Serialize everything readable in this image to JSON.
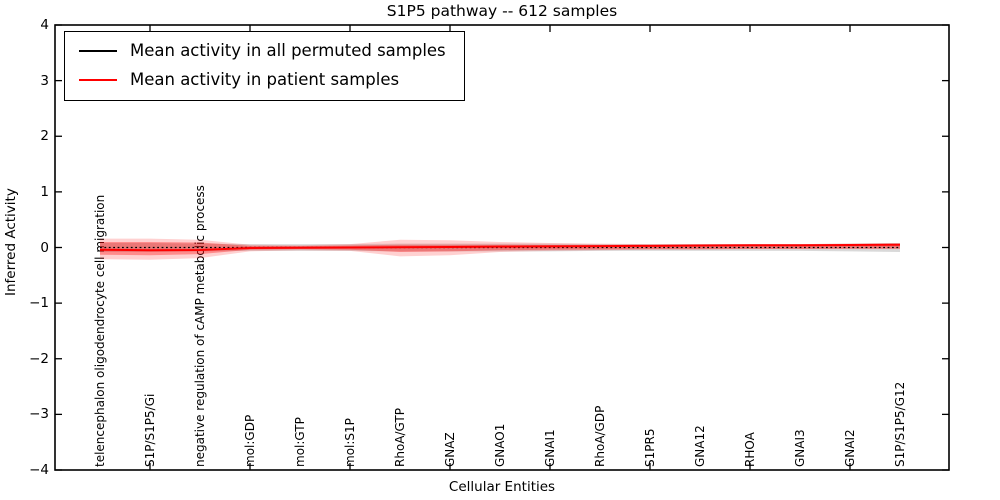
{
  "chart_data": {
    "type": "line",
    "title": "S1P5 pathway -- 612 samples",
    "xlabel": "Cellular Entities",
    "ylabel": "Inferred Activity",
    "ylim": [
      -4,
      4
    ],
    "grid": false,
    "yticks": [
      {
        "label": "4",
        "value": 4
      },
      {
        "label": "3",
        "value": 3
      },
      {
        "label": "2",
        "value": 2
      },
      {
        "label": "1",
        "value": 1
      },
      {
        "label": "0",
        "value": 0
      },
      {
        "label": "−1",
        "value": -1
      },
      {
        "label": "−2",
        "value": -2
      },
      {
        "label": "−3",
        "value": -3
      },
      {
        "label": "−4",
        "value": -4
      }
    ],
    "categories": [
      "telencephalon oligodendrocyte cell migration",
      "S1P/S1P5/Gi",
      "negative regulation of cAMP metabolic process",
      "mol:GDP",
      "mol:GTP",
      "mol:S1P",
      "RhoA/GTP",
      "GNAZ",
      "GNAO1",
      "GNAI1",
      "RhoA/GDP",
      "S1PR5",
      "GNA12",
      "RHOA",
      "GNAI3",
      "GNAI2",
      "S1P/S1P5/G12"
    ],
    "legend": {
      "position": "upper-left",
      "entries": [
        {
          "label": "Mean activity in all permuted samples",
          "color": "#000000"
        },
        {
          "label": "Mean activity in patient samples",
          "color": "#ff0000"
        }
      ]
    },
    "series": [
      {
        "name": "Mean activity in all permuted samples",
        "color": "#000000",
        "line_style": "dotted",
        "values": [
          0,
          0,
          0,
          0,
          0,
          0,
          0,
          0,
          0,
          0,
          0,
          0,
          0,
          0,
          0,
          0,
          0
        ]
      },
      {
        "name": "Mean activity in patient samples",
        "color": "#ff0000",
        "line_style": "solid",
        "values": [
          -0.04,
          -0.05,
          -0.045,
          -0.01,
          -0.005,
          0,
          0.005,
          0.01,
          0.015,
          0.02,
          0.025,
          0.03,
          0.035,
          0.04,
          0.04,
          0.045,
          0.05
        ]
      }
    ],
    "bands": [
      {
        "name": "permuted-samples-std-band",
        "color": "#808080",
        "opacity": 0.3,
        "upper": [
          0.08,
          0.08,
          0.07,
          0.06,
          0.06,
          0.06,
          0.07,
          0.07,
          0.07,
          0.07,
          0.06,
          0.06,
          0.06,
          0.06,
          0.06,
          0.07,
          0.08
        ],
        "lower": [
          -0.08,
          -0.08,
          -0.07,
          -0.06,
          -0.06,
          -0.06,
          -0.07,
          -0.07,
          -0.07,
          -0.07,
          -0.06,
          -0.06,
          -0.06,
          -0.06,
          -0.06,
          -0.07,
          -0.08
        ]
      },
      {
        "name": "patient-samples-std-band-outer",
        "color": "#ff0000",
        "opacity": 0.18,
        "upper": [
          0.16,
          0.16,
          0.14,
          0.05,
          0.04,
          0.06,
          0.14,
          0.13,
          0.1,
          0.08,
          0.07,
          0.06,
          0.06,
          0.06,
          0.06,
          0.07,
          0.08
        ],
        "lower": [
          -0.21,
          -0.22,
          -0.19,
          -0.07,
          -0.05,
          -0.06,
          -0.16,
          -0.14,
          -0.08,
          -0.06,
          -0.05,
          -0.04,
          -0.04,
          -0.03,
          -0.03,
          -0.03,
          -0.03
        ]
      },
      {
        "name": "patient-samples-std-band-inner",
        "color": "#ff0000",
        "opacity": 0.33,
        "upper": [
          0.1,
          0.1,
          0.09,
          0.03,
          0.025,
          0.035,
          0.05,
          0.05,
          0.05,
          0.045,
          0.04,
          0.04,
          0.04,
          0.04,
          0.045,
          0.05,
          0.06
        ],
        "lower": [
          -0.13,
          -0.14,
          -0.12,
          -0.04,
          -0.03,
          -0.04,
          -0.08,
          -0.07,
          -0.05,
          -0.04,
          -0.035,
          -0.03,
          -0.03,
          -0.025,
          -0.025,
          -0.02,
          -0.02
        ]
      }
    ]
  }
}
